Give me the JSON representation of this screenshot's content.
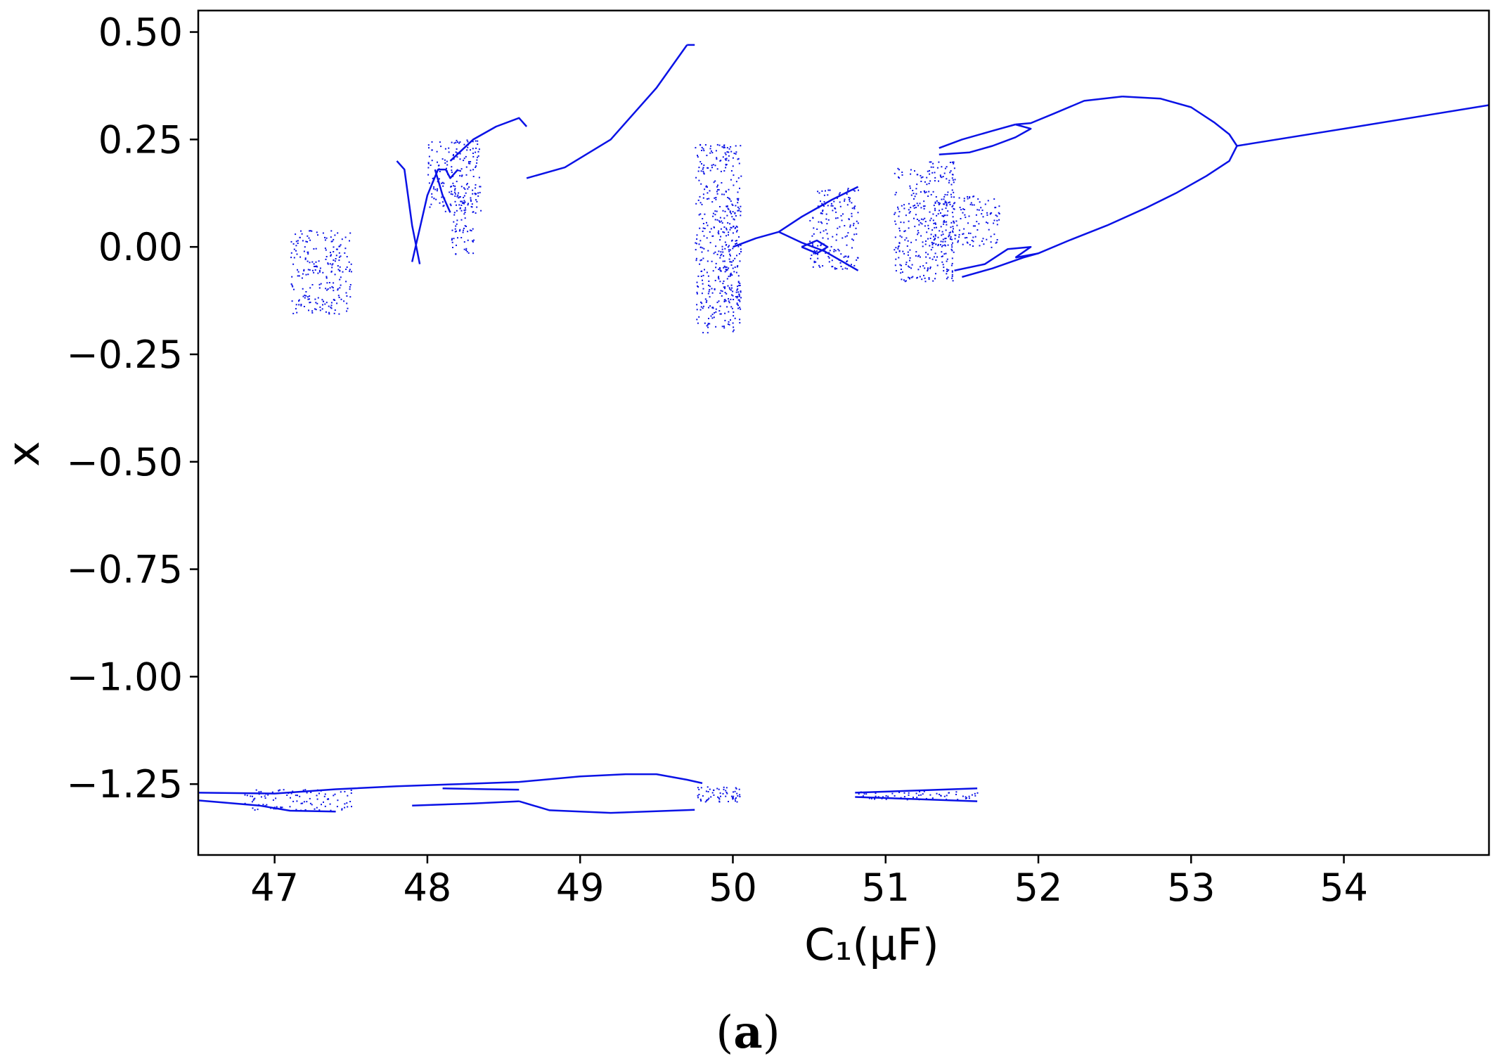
{
  "chart_data": {
    "type": "scatter",
    "title": "",
    "xlabel": "C₁(μF)",
    "ylabel": "x",
    "caption": {
      "open": "(",
      "letter": "a",
      "close": ")"
    },
    "xlim": [
      46.5,
      54.95
    ],
    "ylim": [
      -1.415,
      0.55
    ],
    "xticks": [
      47,
      48,
      49,
      50,
      51,
      52,
      53,
      54
    ],
    "yticks": [
      0.5,
      0.25,
      0.0,
      -0.25,
      -0.5,
      -0.75,
      -1.0,
      -1.25
    ],
    "ytick_labels": [
      "0.50",
      "0.25",
      "0.00",
      "−0.25",
      "−0.50",
      "−0.75",
      "−1.00",
      "−1.25"
    ],
    "grid": false,
    "legend": "none",
    "color": "#0a12e6",
    "series": [
      {
        "branches": [
          [
            [
              52.55,
              0.35
            ],
            [
              52.8,
              0.345
            ],
            [
              53.0,
              0.325
            ],
            [
              53.15,
              0.29
            ],
            [
              53.25,
              0.262
            ],
            [
              53.3,
              0.235
            ]
          ],
          [
            [
              53.3,
              0.235
            ],
            [
              53.25,
              0.2
            ],
            [
              53.1,
              0.165
            ],
            [
              52.9,
              0.125
            ],
            [
              52.7,
              0.09
            ],
            [
              52.45,
              0.05
            ],
            [
              52.2,
              0.015
            ],
            [
              52.0,
              -0.015
            ],
            [
              51.85,
              -0.025
            ]
          ],
          [
            [
              51.85,
              0.285
            ],
            [
              51.95,
              0.288
            ],
            [
              52.1,
              0.31
            ],
            [
              52.3,
              0.34
            ],
            [
              52.55,
              0.35
            ]
          ],
          [
            [
              53.3,
              0.235
            ],
            [
              54.0,
              0.275
            ],
            [
              54.95,
              0.33
            ]
          ],
          [
            [
              51.35,
              0.23
            ],
            [
              51.5,
              0.25
            ],
            [
              51.7,
              0.27
            ],
            [
              51.85,
              0.285
            ]
          ],
          [
            [
              51.35,
              0.215
            ],
            [
              51.55,
              0.22
            ],
            [
              51.7,
              0.235
            ],
            [
              51.85,
              0.255
            ],
            [
              51.95,
              0.275
            ],
            [
              51.85,
              0.285
            ]
          ],
          [
            [
              51.5,
              -0.07
            ],
            [
              51.7,
              -0.05
            ],
            [
              51.9,
              -0.025
            ],
            [
              52.0,
              -0.015
            ]
          ],
          [
            [
              51.45,
              -0.055
            ],
            [
              51.65,
              -0.04
            ],
            [
              51.8,
              -0.005
            ],
            [
              51.95,
              0.0
            ],
            [
              51.85,
              -0.025
            ]
          ],
          [
            [
              50.0,
              0.0
            ],
            [
              50.15,
              0.02
            ],
            [
              50.3,
              0.035
            ]
          ],
          [
            [
              50.3,
              0.035
            ],
            [
              50.45,
              0.07
            ],
            [
              50.65,
              0.11
            ],
            [
              50.82,
              0.14
            ]
          ],
          [
            [
              50.3,
              0.035
            ],
            [
              50.45,
              0.01
            ],
            [
              50.6,
              -0.01
            ],
            [
              50.82,
              -0.055
            ]
          ],
          [
            [
              50.45,
              0.0
            ],
            [
              50.55,
              0.015
            ],
            [
              50.62,
              0.0
            ],
            [
              50.55,
              -0.015
            ],
            [
              50.45,
              0.0
            ]
          ],
          [
            [
              48.65,
              0.16
            ],
            [
              48.9,
              0.185
            ],
            [
              49.2,
              0.25
            ],
            [
              49.5,
              0.37
            ],
            [
              49.7,
              0.47
            ]
          ],
          [
            [
              49.7,
              0.47
            ],
            [
              49.75,
              0.47
            ]
          ],
          [
            [
              48.15,
              0.2
            ],
            [
              48.3,
              0.25
            ],
            [
              48.45,
              0.28
            ],
            [
              48.6,
              0.3
            ],
            [
              48.65,
              0.28
            ]
          ],
          [
            [
              47.8,
              0.2
            ],
            [
              47.85,
              0.18
            ],
            [
              47.9,
              0.05
            ],
            [
              47.95,
              -0.04
            ]
          ],
          [
            [
              47.9,
              -0.035
            ],
            [
              48.0,
              0.12
            ],
            [
              48.07,
              0.18
            ],
            [
              48.12,
              0.18
            ],
            [
              48.15,
              0.16
            ],
            [
              48.2,
              0.18
            ]
          ],
          [
            [
              48.05,
              0.18
            ],
            [
              48.1,
              0.12
            ],
            [
              48.15,
              0.08
            ]
          ],
          [
            [
              46.5,
              -1.27
            ],
            [
              47.0,
              -1.272
            ],
            [
              47.4,
              -1.262
            ],
            [
              47.8,
              -1.255
            ],
            [
              48.2,
              -1.25
            ],
            [
              48.6,
              -1.245
            ],
            [
              49.0,
              -1.232
            ],
            [
              49.3,
              -1.227
            ],
            [
              49.5,
              -1.227
            ],
            [
              49.7,
              -1.24
            ],
            [
              49.8,
              -1.248
            ]
          ],
          [
            [
              46.5,
              -1.288
            ],
            [
              46.9,
              -1.3
            ],
            [
              47.1,
              -1.312
            ],
            [
              47.4,
              -1.314
            ]
          ],
          [
            [
              47.9,
              -1.3
            ],
            [
              48.3,
              -1.295
            ],
            [
              48.6,
              -1.29
            ]
          ],
          [
            [
              48.6,
              -1.29
            ],
            [
              48.8,
              -1.311
            ],
            [
              49.2,
              -1.317
            ],
            [
              49.5,
              -1.313
            ],
            [
              49.75,
              -1.31
            ]
          ],
          [
            [
              48.1,
              -1.26
            ],
            [
              48.4,
              -1.262
            ],
            [
              48.6,
              -1.263
            ]
          ],
          [
            [
              50.8,
              -1.27
            ],
            [
              51.6,
              -1.26
            ]
          ],
          [
            [
              50.8,
              -1.28
            ],
            [
              51.6,
              -1.29
            ]
          ]
        ],
        "clouds": [
          {
            "x": [
              47.1,
              47.5
            ],
            "y": [
              -0.155,
              0.04
            ]
          },
          {
            "x": [
              48.0,
              48.35
            ],
            "y": [
              0.08,
              0.25
            ]
          },
          {
            "x": [
              48.15,
              48.3
            ],
            "y": [
              -0.02,
              0.15
            ]
          },
          {
            "x": [
              49.75,
              50.05
            ],
            "y": [
              -0.2,
              0.24
            ]
          },
          {
            "x": [
              49.9,
              50.05
            ],
            "y": [
              -0.15,
              0.05
            ]
          },
          {
            "x": [
              50.55,
              50.82
            ],
            "y": [
              0.07,
              0.14
            ]
          },
          {
            "x": [
              50.5,
              50.82
            ],
            "y": [
              -0.05,
              0.07
            ]
          },
          {
            "x": [
              51.05,
              51.45
            ],
            "y": [
              -0.08,
              0.2
            ]
          },
          {
            "x": [
              51.3,
              51.75
            ],
            "y": [
              0.0,
              0.12
            ]
          },
          {
            "x": [
              46.8,
              47.5
            ],
            "y": [
              -1.31,
              -1.26
            ]
          },
          {
            "x": [
              49.75,
              50.05
            ],
            "y": [
              -1.29,
              -1.255
            ]
          },
          {
            "x": [
              50.8,
              51.6
            ],
            "y": [
              -1.285,
              -1.265
            ]
          }
        ]
      }
    ]
  }
}
